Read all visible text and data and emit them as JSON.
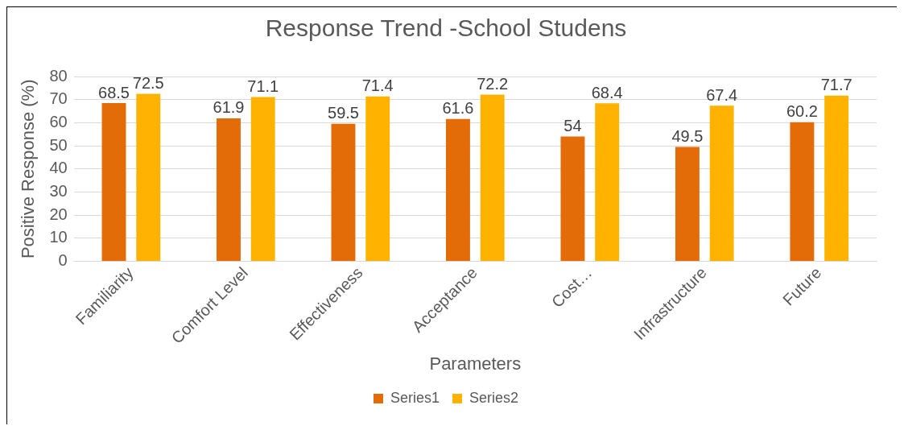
{
  "chart_data": {
    "type": "bar",
    "title": "Response Trend -School Studens",
    "xlabel": "Parameters",
    "ylabel": "Positive Response (%)",
    "categories": [
      "Familiarity",
      "Comfort Level",
      "Effectiveness",
      "Acceptance",
      "Cost…",
      "Infrastructure",
      "Future"
    ],
    "series": [
      {
        "name": "Series1",
        "color": "#e36c09",
        "values": [
          68.5,
          61.9,
          59.5,
          61.6,
          54,
          49.5,
          60.2
        ]
      },
      {
        "name": "Series2",
        "color": "#ffb300",
        "values": [
          72.5,
          71.1,
          71.4,
          72.2,
          68.4,
          67.4,
          71.7
        ]
      }
    ],
    "ylim": [
      0,
      80
    ],
    "yticks": [
      0,
      10,
      20,
      30,
      40,
      50,
      60,
      70,
      80
    ],
    "grid": "y",
    "legend": "bottom",
    "data_labels": true
  }
}
